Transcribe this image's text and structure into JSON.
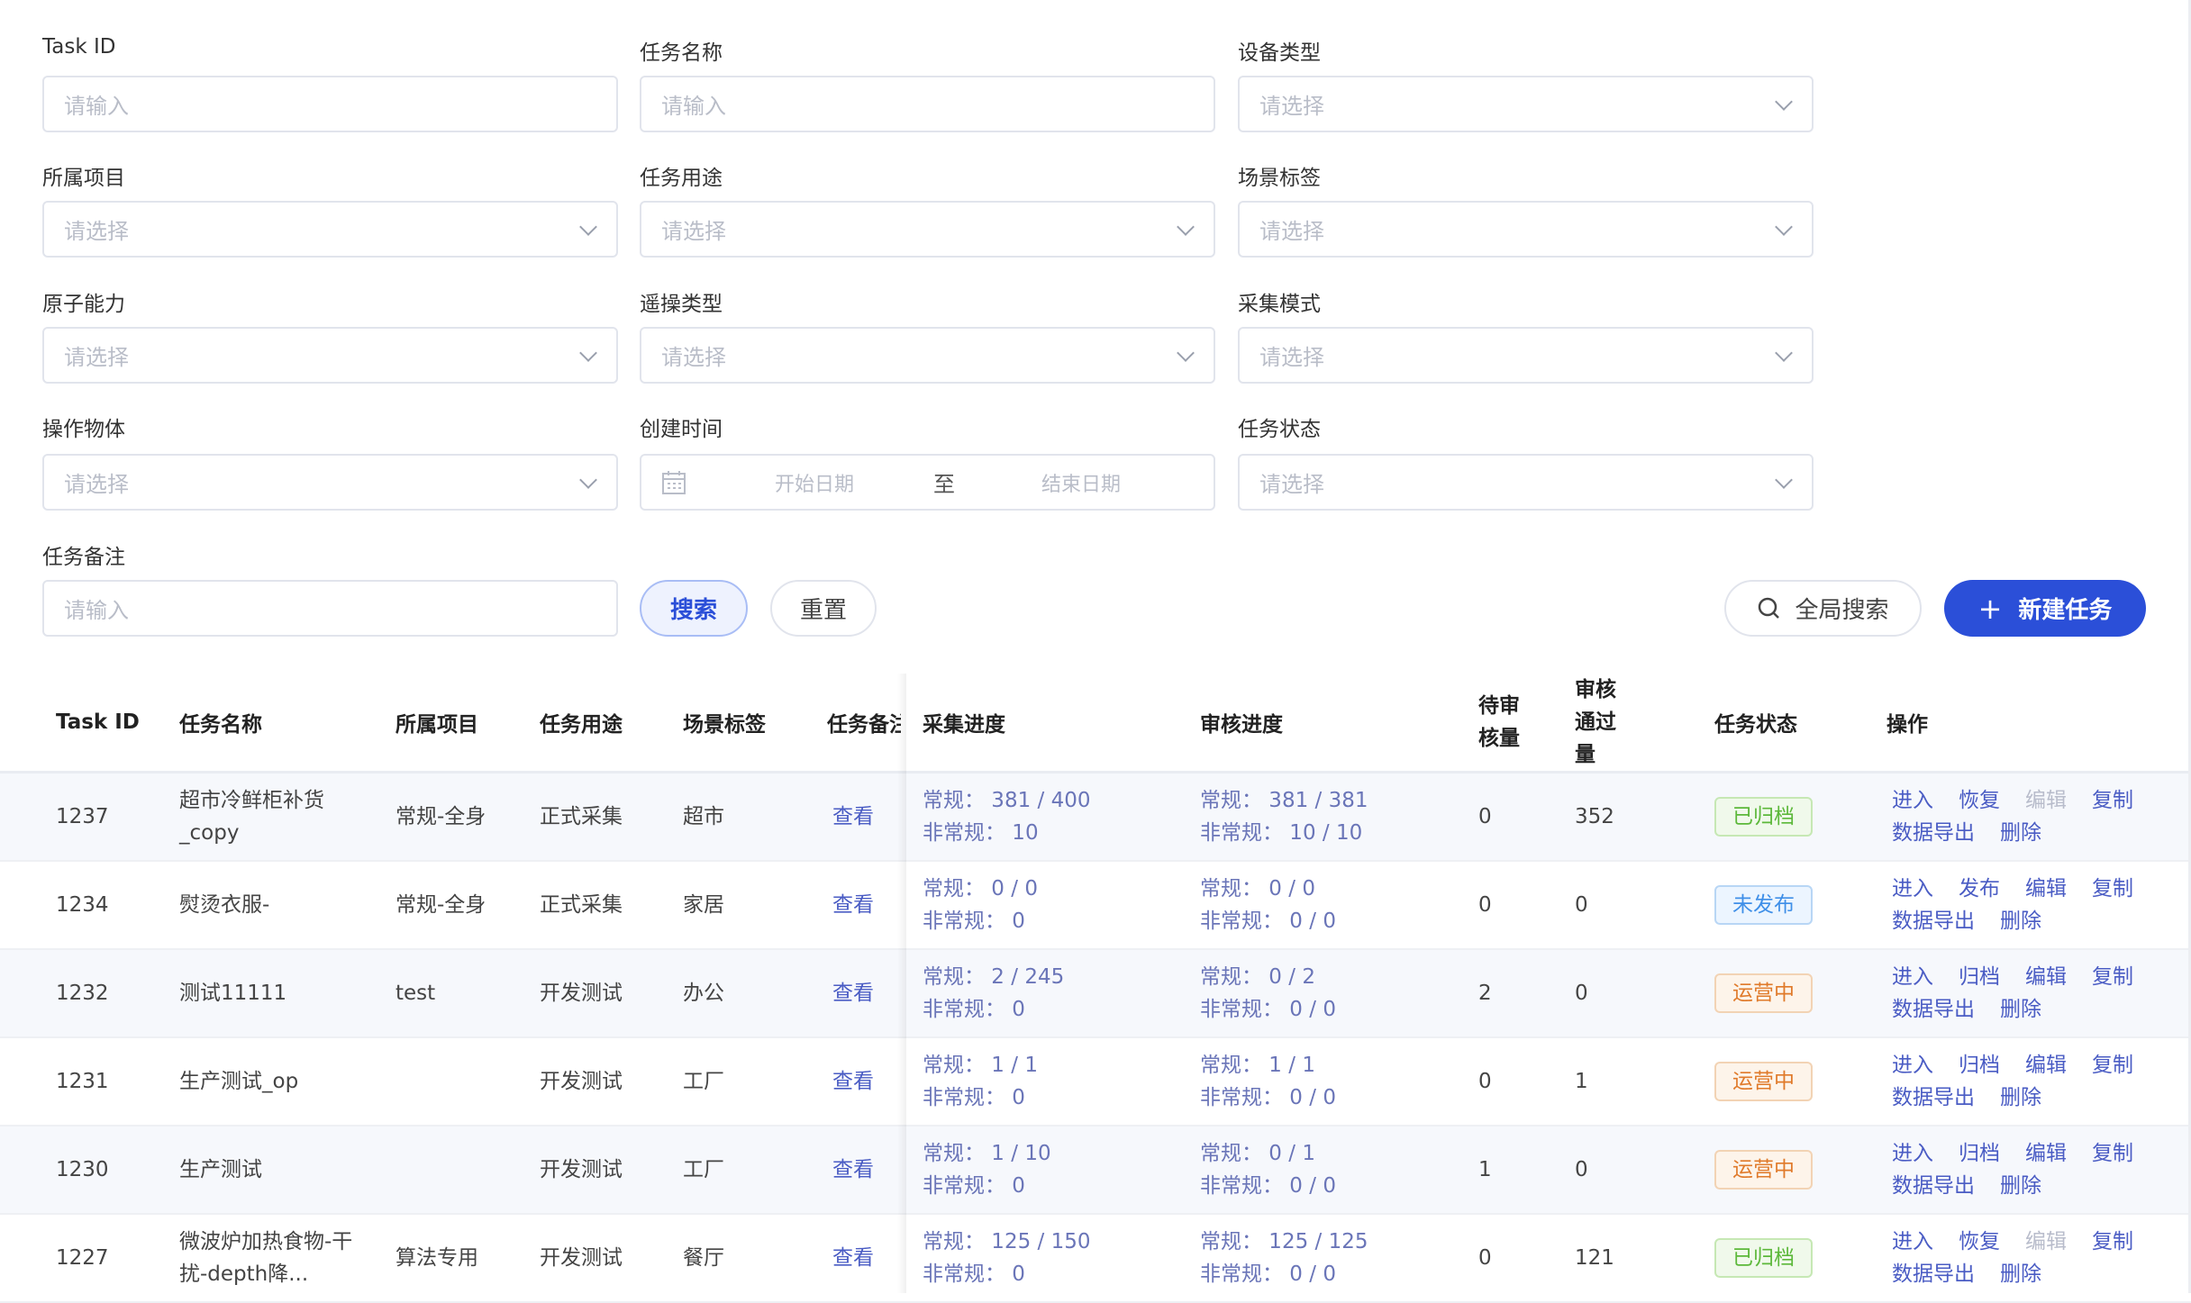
{
  "filters": [
    {
      "label": "Task ID",
      "placeholder": "请输入",
      "type": "input"
    },
    {
      "label": "任务名称",
      "placeholder": "请输入",
      "type": "input"
    },
    {
      "label": "设备类型",
      "placeholder": "请选择",
      "type": "select"
    },
    {
      "label": "所属项目",
      "placeholder": "请选择",
      "type": "select"
    },
    {
      "label": "任务用途",
      "placeholder": "请选择",
      "type": "select"
    },
    {
      "label": "场景标签",
      "placeholder": "请选择",
      "type": "select"
    },
    {
      "label": "原子能力",
      "placeholder": "请选择",
      "type": "select"
    },
    {
      "label": "遥操类型",
      "placeholder": "请选择",
      "type": "select"
    },
    {
      "label": "采集模式",
      "placeholder": "请选择",
      "type": "select"
    },
    {
      "label": "操作物体",
      "placeholder": "请选择",
      "type": "select"
    },
    {
      "label": "创建时间",
      "type": "daterange",
      "start_placeholder": "开始日期",
      "separator": "至",
      "end_placeholder": "结束日期"
    },
    {
      "label": "任务状态",
      "placeholder": "请选择",
      "type": "select"
    },
    {
      "label": "任务备注",
      "placeholder": "请输入",
      "type": "input"
    }
  ],
  "actions": {
    "search": "搜索",
    "reset": "重置",
    "global_search": "全局搜索",
    "new_task": "新建任务"
  },
  "colors": {
    "primary": "#2b4fd8",
    "link": "#4a5cc4",
    "archived": "#5cb83a",
    "unpublished": "#3f8fe8",
    "running": "#e07a2a"
  },
  "table": {
    "headers": [
      "Task ID",
      "任务名称",
      "所属项目",
      "任务用途",
      "场景标签",
      "任务备注",
      "采集进度",
      "审核进度",
      "待审核量",
      "审核通过量",
      "任务状态",
      "操作"
    ],
    "rows": [
      {
        "id": "1237",
        "name": "超市冷鲜柜补货_copy",
        "project": "常规-全身",
        "use": "正式采集",
        "scene": "超市",
        "remark": "查看",
        "collect": [
          "常规： 381 / 400",
          "非常规： 10"
        ],
        "audit": [
          "常规： 381 / 381",
          "非常规： 10 / 10"
        ],
        "pending": "0",
        "passed": "352",
        "status": "已归档",
        "status_kind": "archived",
        "ops": [
          {
            "t": "进入"
          },
          {
            "t": "恢复"
          },
          {
            "t": "编辑",
            "disabled": true
          },
          {
            "t": "复制"
          },
          {
            "t": "数据导出"
          },
          {
            "t": "删除"
          }
        ]
      },
      {
        "id": "1234",
        "name": "熨烫衣服-",
        "project": "常规-全身",
        "use": "正式采集",
        "scene": "家居",
        "remark": "查看",
        "collect": [
          "常规： 0 / 0",
          "非常规： 0"
        ],
        "audit": [
          "常规： 0 / 0",
          "非常规： 0 / 0"
        ],
        "pending": "0",
        "passed": "0",
        "status": "未发布",
        "status_kind": "unpublished",
        "ops": [
          {
            "t": "进入"
          },
          {
            "t": "发布"
          },
          {
            "t": "编辑"
          },
          {
            "t": "复制"
          },
          {
            "t": "数据导出"
          },
          {
            "t": "删除"
          }
        ]
      },
      {
        "id": "1232",
        "name": "测试11111",
        "project": "test",
        "use": "开发测试",
        "scene": "办公",
        "remark": "查看",
        "collect": [
          "常规： 2 / 245",
          "非常规： 0"
        ],
        "audit": [
          "常规： 0 / 2",
          "非常规： 0 / 0"
        ],
        "pending": "2",
        "passed": "0",
        "status": "运营中",
        "status_kind": "running",
        "ops": [
          {
            "t": "进入"
          },
          {
            "t": "归档"
          },
          {
            "t": "编辑"
          },
          {
            "t": "复制"
          },
          {
            "t": "数据导出"
          },
          {
            "t": "删除"
          }
        ]
      },
      {
        "id": "1231",
        "name": "生产测试_op",
        "project": "",
        "use": "开发测试",
        "scene": "工厂",
        "remark": "查看",
        "collect": [
          "常规： 1 / 1",
          "非常规： 0"
        ],
        "audit": [
          "常规： 1 / 1",
          "非常规： 0 / 0"
        ],
        "pending": "0",
        "passed": "1",
        "status": "运营中",
        "status_kind": "running",
        "ops": [
          {
            "t": "进入"
          },
          {
            "t": "归档"
          },
          {
            "t": "编辑"
          },
          {
            "t": "复制"
          },
          {
            "t": "数据导出"
          },
          {
            "t": "删除"
          }
        ]
      },
      {
        "id": "1230",
        "name": "生产测试",
        "project": "",
        "use": "开发测试",
        "scene": "工厂",
        "remark": "查看",
        "collect": [
          "常规： 1 / 10",
          "非常规： 0"
        ],
        "audit": [
          "常规： 0 / 1",
          "非常规： 0 / 0"
        ],
        "pending": "1",
        "passed": "0",
        "status": "运营中",
        "status_kind": "running",
        "ops": [
          {
            "t": "进入"
          },
          {
            "t": "归档"
          },
          {
            "t": "编辑"
          },
          {
            "t": "复制"
          },
          {
            "t": "数据导出"
          },
          {
            "t": "删除"
          }
        ]
      },
      {
        "id": "1227",
        "name": "微波炉加热食物-干扰-depth降...",
        "project": "算法专用",
        "use": "开发测试",
        "scene": "餐厅",
        "remark": "查看",
        "collect": [
          "常规： 125 / 150",
          "非常规： 0"
        ],
        "audit": [
          "常规： 125 / 125",
          "非常规： 0 / 0"
        ],
        "pending": "0",
        "passed": "121",
        "status": "已归档",
        "status_kind": "archived",
        "ops": [
          {
            "t": "进入"
          },
          {
            "t": "恢复"
          },
          {
            "t": "编辑",
            "disabled": true
          },
          {
            "t": "复制"
          },
          {
            "t": "数据导出"
          },
          {
            "t": "删除"
          }
        ]
      }
    ]
  }
}
